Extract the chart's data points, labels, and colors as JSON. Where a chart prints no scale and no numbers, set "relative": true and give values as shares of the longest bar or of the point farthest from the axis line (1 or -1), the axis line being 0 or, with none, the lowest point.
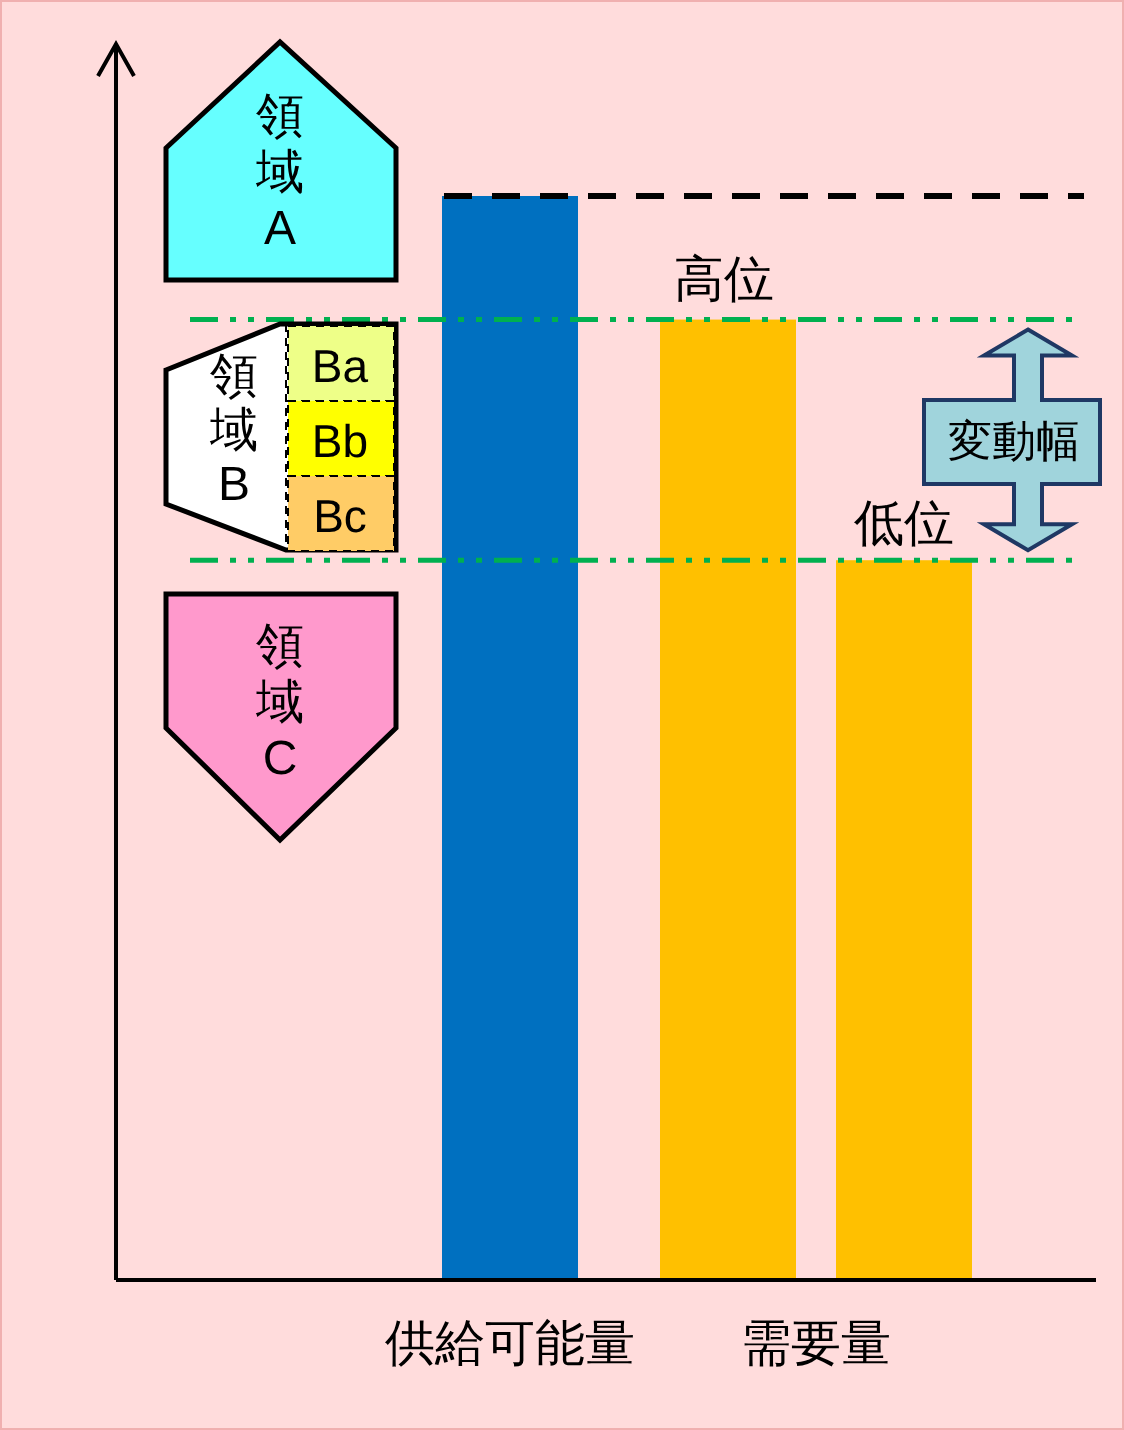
{
  "chart_data": {
    "type": "bar",
    "relative": true,
    "categories": [
      "供給可能量",
      "需要量"
    ],
    "series": [
      {
        "color": "#0070c0",
        "values": [
          1,
          null
        ]
      },
      {
        "color": "#ffc000",
        "values": [
          null,
          0.886
        ]
      },
      {
        "color": "#ffc000",
        "values": [
          null,
          0.664
        ]
      }
    ],
    "ref_lines": [
      {
        "axis": "y",
        "value": 1,
        "color": "#000000",
        "line_style": "dashed"
      },
      {
        "axis": "y",
        "value": 0.886,
        "color": "#00b050",
        "line_style": "dashdot"
      },
      {
        "axis": "y",
        "value": 0.664,
        "color": "#00b050",
        "line_style": "dashdot"
      }
    ],
    "annotations": [
      "領域A",
      "領域B",
      "領域C",
      "Ba",
      "Bb",
      "Bc",
      "変動幅",
      {
        "text": "高位",
        "y": 0.886
      },
      {
        "text": "低位",
        "y": 0.664
      }
    ]
  }
}
